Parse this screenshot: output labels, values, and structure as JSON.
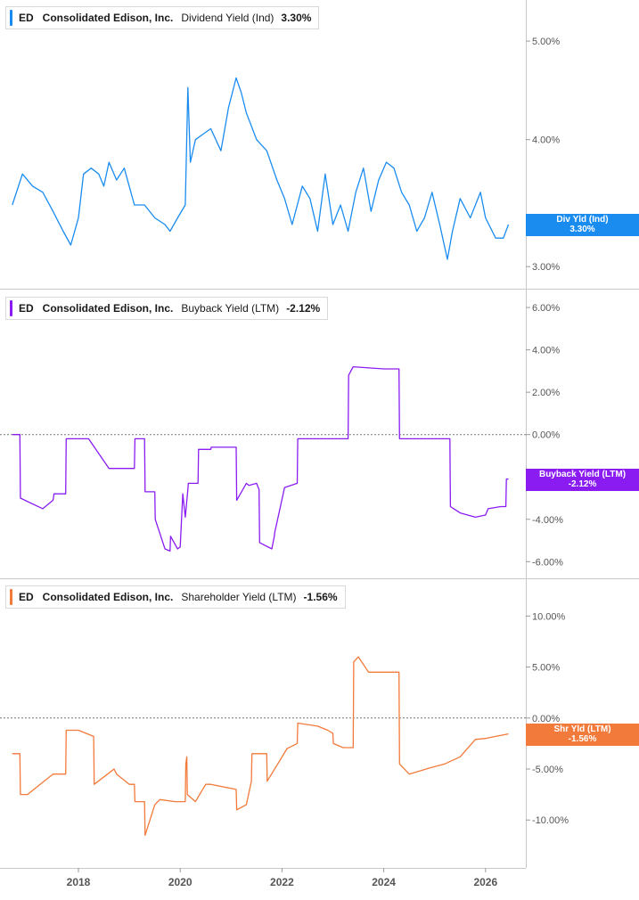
{
  "chart_data": [
    {
      "type": "line",
      "ticker": "ED",
      "company": "Consolidated Edison, Inc.",
      "metric": "Dividend Yield (Ind)",
      "current_value": "3.30%",
      "tag_label": "Div Yld (Ind)",
      "tag_value": "3.30%",
      "color": "#1a8cf0",
      "ylim": [
        2.9,
        5.4
      ],
      "yscale": "log",
      "y_ticks": [
        5.0,
        4.0,
        3.0
      ],
      "y_tick_labels": [
        "5.00%",
        "4.00%",
        "3.00%"
      ],
      "zero_line": false,
      "series": [
        {
          "x": [
            2016.7,
            2016.9,
            2017.1,
            2017.3,
            2017.5,
            2017.7,
            2017.85,
            2018.0,
            2018.1,
            2018.25,
            2018.4,
            2018.5,
            2018.6,
            2018.75,
            2018.9,
            2019.1,
            2019.3,
            2019.5,
            2019.7,
            2019.8,
            2019.95,
            2020.1,
            2020.15,
            2020.2,
            2020.3,
            2020.45,
            2020.6,
            2020.8,
            2020.95,
            2021.1,
            2021.2,
            2021.3,
            2021.5,
            2021.7,
            2021.9,
            2022.05,
            2022.2,
            2022.4,
            2022.55,
            2022.7,
            2022.85,
            2023.0,
            2023.15,
            2023.3,
            2023.45,
            2023.6,
            2023.75,
            2023.9,
            2024.05,
            2024.2,
            2024.35,
            2024.5,
            2024.65,
            2024.8,
            2024.95,
            2025.1,
            2025.25,
            2025.35,
            2025.5,
            2025.7,
            2025.9,
            2026.0,
            2026.2,
            2026.35,
            2026.45
          ],
          "values": [
            3.45,
            3.7,
            3.6,
            3.55,
            3.4,
            3.25,
            3.15,
            3.35,
            3.7,
            3.75,
            3.7,
            3.6,
            3.8,
            3.65,
            3.75,
            3.45,
            3.45,
            3.35,
            3.3,
            3.25,
            3.35,
            3.45,
            4.5,
            3.8,
            4.0,
            4.05,
            4.1,
            3.9,
            4.3,
            4.6,
            4.45,
            4.25,
            4.0,
            3.9,
            3.65,
            3.5,
            3.3,
            3.6,
            3.5,
            3.25,
            3.7,
            3.3,
            3.45,
            3.25,
            3.55,
            3.75,
            3.4,
            3.65,
            3.8,
            3.75,
            3.55,
            3.45,
            3.25,
            3.35,
            3.55,
            3.3,
            3.05,
            3.25,
            3.5,
            3.35,
            3.55,
            3.35,
            3.2,
            3.2,
            3.3
          ]
        }
      ]
    },
    {
      "type": "line",
      "ticker": "ED",
      "company": "Consolidated Edison, Inc.",
      "metric": "Buyback Yield (LTM)",
      "current_value": "-2.12%",
      "tag_label": "Buyback Yield (LTM)",
      "tag_value": "-2.12%",
      "color": "#8a1cf2",
      "ylim": [
        -6.45,
        6.55
      ],
      "yscale": "linear",
      "y_ticks": [
        6,
        4,
        2,
        0,
        -4,
        -6
      ],
      "y_tick_labels": [
        "6.00%",
        "4.00%",
        "2.00%",
        "0.00%",
        "-4.00%",
        "-6.00%"
      ],
      "zero_line": true,
      "series": [
        {
          "x": [
            2016.7,
            2016.85,
            2016.86,
            2017.3,
            2017.5,
            2017.52,
            2017.75,
            2017.76,
            2018.2,
            2018.6,
            2018.8,
            2018.81,
            2019.1,
            2019.11,
            2019.3,
            2019.31,
            2019.5,
            2019.51,
            2019.7,
            2019.8,
            2019.81,
            2019.95,
            2020.0,
            2020.05,
            2020.1,
            2020.15,
            2020.16,
            2020.35,
            2020.36,
            2020.6,
            2020.61,
            2021.1,
            2021.11,
            2021.3,
            2021.35,
            2021.5,
            2021.55,
            2021.56,
            2021.8,
            2021.85,
            2021.86,
            2022.05,
            2022.3,
            2022.31,
            2022.6,
            2022.61,
            2023.3,
            2023.31,
            2023.4,
            2024.0,
            2024.3,
            2024.31,
            2025.3,
            2025.31,
            2025.5,
            2025.8,
            2026.0,
            2026.05,
            2026.3,
            2026.4,
            2026.41,
            2026.45
          ],
          "values": [
            0.0,
            0.0,
            -3.0,
            -3.5,
            -3.1,
            -2.8,
            -2.8,
            -0.2,
            -0.2,
            -1.6,
            -1.6,
            -1.6,
            -1.6,
            -0.2,
            -0.2,
            -2.7,
            -2.7,
            -4.0,
            -5.4,
            -5.5,
            -4.8,
            -5.4,
            -5.3,
            -2.8,
            -3.9,
            -2.6,
            -2.3,
            -2.3,
            -0.7,
            -0.7,
            -0.6,
            -0.6,
            -3.1,
            -2.3,
            -2.4,
            -2.3,
            -2.6,
            -5.1,
            -5.4,
            -4.8,
            -4.6,
            -2.5,
            -2.3,
            -0.2,
            -0.2,
            -0.2,
            -0.2,
            2.8,
            3.2,
            3.1,
            3.1,
            -0.2,
            -0.2,
            -3.4,
            -3.7,
            -3.9,
            -3.8,
            -3.5,
            -3.4,
            -3.4,
            -2.1,
            -2.1
          ]
        }
      ]
    },
    {
      "type": "line",
      "ticker": "ED",
      "company": "Consolidated Edison, Inc.",
      "metric": "Shareholder Yield (LTM)",
      "current_value": "-1.56%",
      "tag_label": "Shr Yld (LTM)",
      "tag_value": "-1.56%",
      "color": "#f27a3a",
      "ylim": [
        -14.0,
        13.0
      ],
      "yscale": "linear",
      "y_ticks": [
        10,
        5,
        0,
        -5,
        -10
      ],
      "y_tick_labels": [
        "10.00%",
        "5.00%",
        "0.00%",
        "-5.00%",
        "-10.00%"
      ],
      "zero_line": true,
      "series": [
        {
          "x": [
            2016.7,
            2016.85,
            2016.86,
            2017.0,
            2017.3,
            2017.5,
            2017.52,
            2017.75,
            2017.76,
            2018.0,
            2018.3,
            2018.31,
            2018.7,
            2018.75,
            2019.0,
            2019.01,
            2019.1,
            2019.11,
            2019.3,
            2019.31,
            2019.5,
            2019.6,
            2019.9,
            2020.1,
            2020.11,
            2020.13,
            2020.14,
            2020.3,
            2020.5,
            2020.6,
            2021.1,
            2021.11,
            2021.3,
            2021.4,
            2021.41,
            2021.7,
            2021.71,
            2022.1,
            2022.3,
            2022.31,
            2022.7,
            2022.9,
            2023.0,
            2023.01,
            2023.2,
            2023.4,
            2023.41,
            2023.5,
            2023.7,
            2024.0,
            2024.3,
            2024.31,
            2024.5,
            2024.9,
            2025.2,
            2025.5,
            2025.8,
            2026.0,
            2026.2,
            2026.45
          ],
          "values": [
            -3.5,
            -3.5,
            -7.5,
            -7.5,
            -6.3,
            -5.5,
            -5.5,
            -5.5,
            -1.2,
            -1.2,
            -1.8,
            -6.5,
            -5.0,
            -5.5,
            -6.5,
            -6.5,
            -6.5,
            -8.2,
            -8.2,
            -11.5,
            -8.5,
            -8.0,
            -8.2,
            -8.2,
            -4.5,
            -3.8,
            -7.5,
            -8.2,
            -6.5,
            -6.5,
            -7.0,
            -9.0,
            -8.5,
            -6.2,
            -3.5,
            -3.5,
            -6.2,
            -3.0,
            -2.5,
            -0.5,
            -0.8,
            -1.2,
            -1.5,
            -2.5,
            -2.9,
            -2.9,
            5.5,
            6.0,
            4.5,
            4.5,
            4.5,
            -4.5,
            -5.5,
            -4.9,
            -4.5,
            -3.8,
            -2.1,
            -2.0,
            -1.8,
            -1.56
          ]
        }
      ]
    }
  ],
  "x_axis": {
    "tick_values": [
      2018,
      2020,
      2022,
      2024,
      2026
    ],
    "tick_labels": [
      "2018",
      "2020",
      "2022",
      "2024",
      "2026"
    ]
  }
}
